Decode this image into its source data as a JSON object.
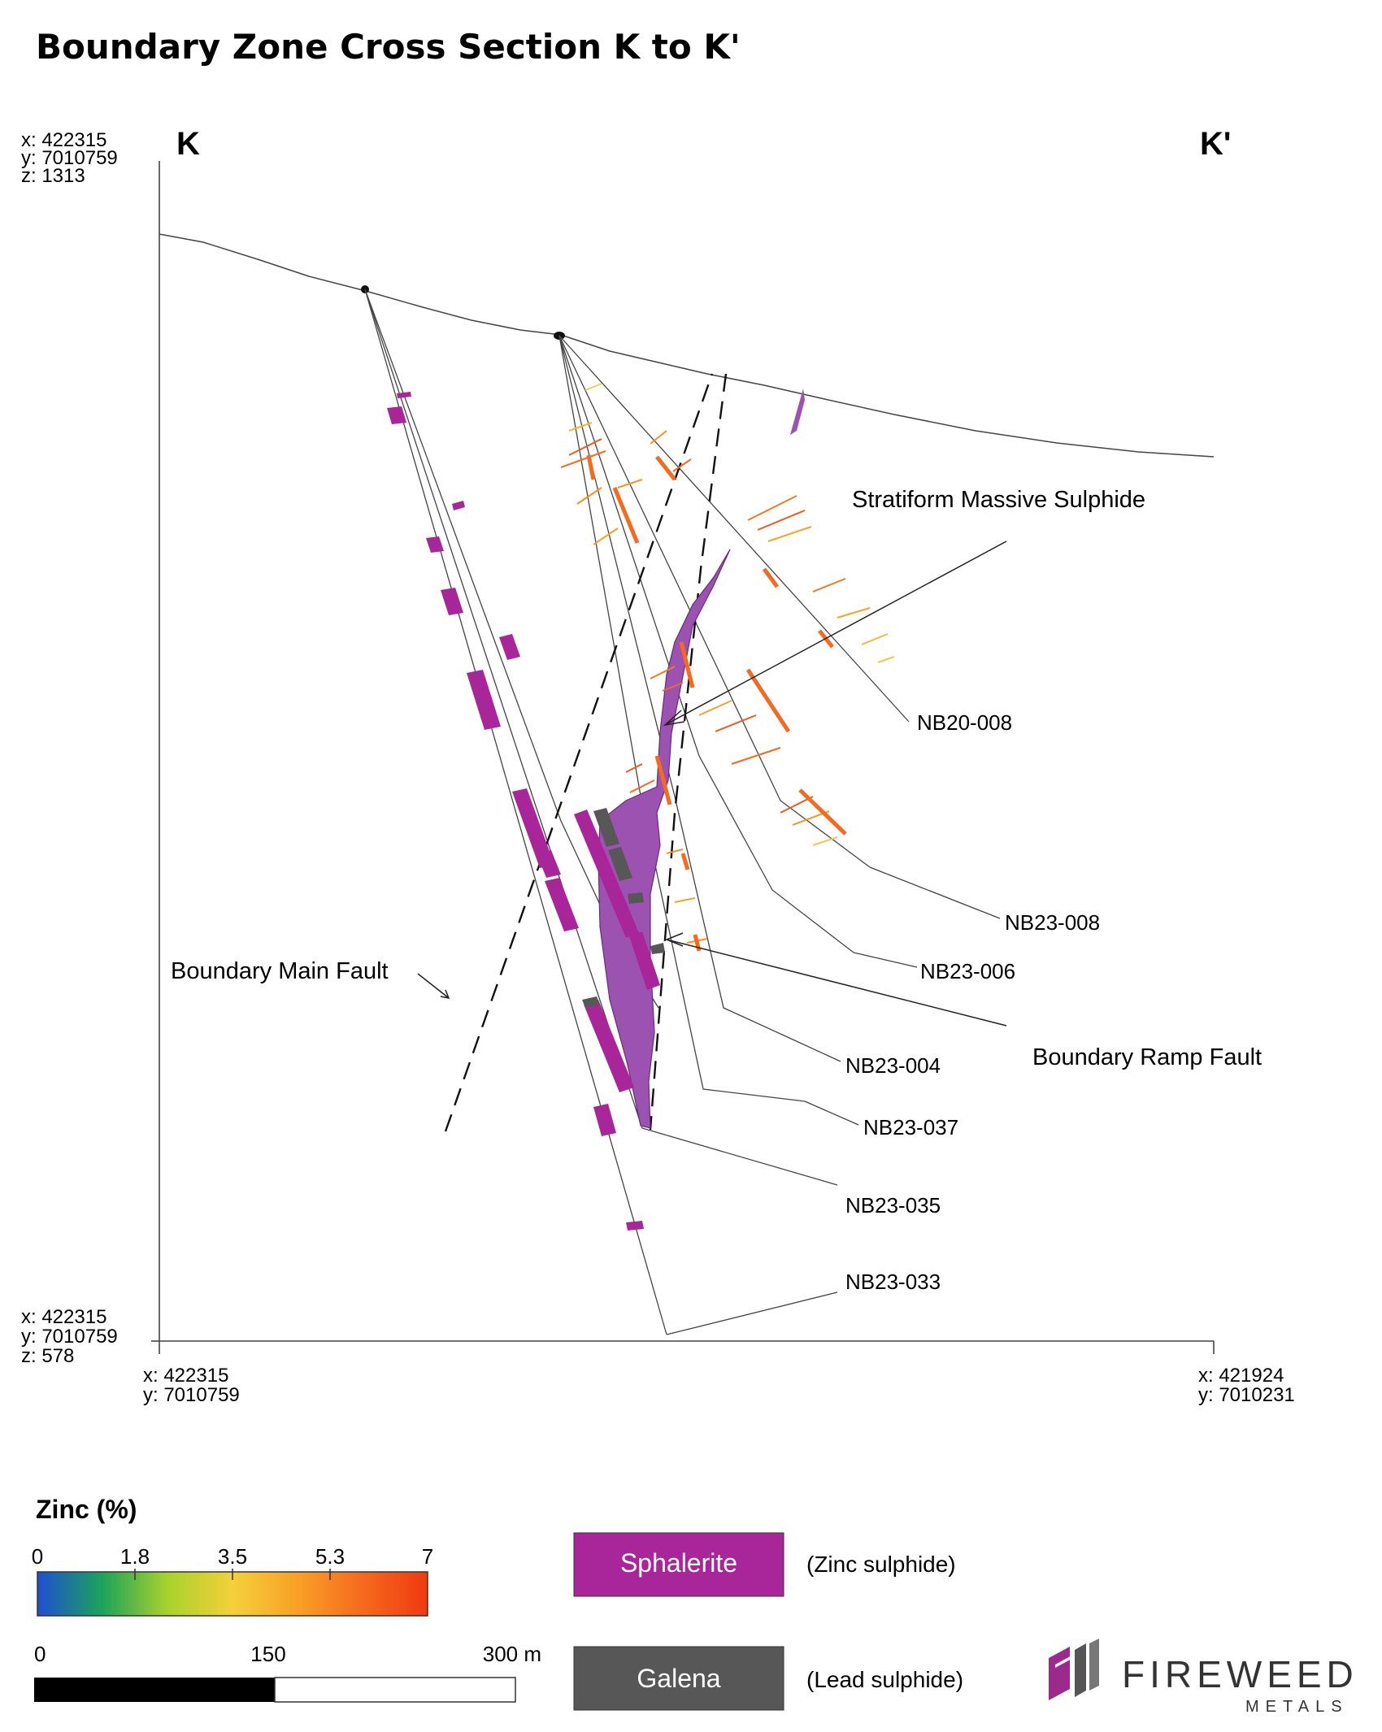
{
  "title": "Boundary Zone Cross Section K to K'",
  "section": {
    "start_label": "K",
    "end_label": "K'",
    "top_left_coords": [
      "x: 422315",
      "y: 7010759",
      "z: 1313"
    ],
    "bottom_left_coords": [
      "x: 422315",
      "y: 7010759",
      "z: 578"
    ],
    "base_left_coords": [
      "x: 422315",
      "y: 7010759"
    ],
    "base_right_coords": [
      "x: 421924",
      "y: 7010231"
    ]
  },
  "annotations": {
    "stratiform": "Stratiform Massive Sulphide",
    "main_fault": "Boundary Main Fault",
    "ramp_fault": "Boundary Ramp Fault"
  },
  "drillholes": [
    "NB20-008",
    "NB23-008",
    "NB23-006",
    "NB23-004",
    "NB23-037",
    "NB23-035",
    "NB23-033"
  ],
  "legend": {
    "zinc_title": "Zinc (%)",
    "zinc_ticks": [
      "0",
      "1.8",
      "3.5",
      "5.3",
      "7"
    ],
    "zinc_gradient": [
      "#1f4fd1",
      "#1ea35a",
      "#a8d22c",
      "#f4d03a",
      "#f9a026",
      "#f56a1e",
      "#f03a10"
    ],
    "scale_ticks": [
      "0",
      "150",
      "300 m"
    ],
    "sphalerite_label": "Sphalerite",
    "sphalerite_desc": "(Zinc sulphide)",
    "galena_label": "Galena",
    "galena_desc": "(Lead sulphide)",
    "sphalerite_color": "#a8269a",
    "galena_color": "#575757"
  },
  "logo": {
    "name": "FIREWEED",
    "sub": "METALS",
    "color": "#9c2a8d"
  }
}
